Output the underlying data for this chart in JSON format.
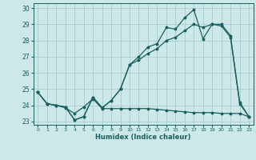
{
  "xlabel": "Humidex (Indice chaleur)",
  "ylabel": "",
  "background_color": "#cce8e8",
  "grid_color": "#aacccc",
  "line_color": "#1a6060",
  "xlim": [
    -0.5,
    23.5
  ],
  "ylim": [
    22.8,
    30.3
  ],
  "yticks": [
    23,
    24,
    25,
    26,
    27,
    28,
    29,
    30
  ],
  "xticks": [
    0,
    1,
    2,
    3,
    4,
    5,
    6,
    7,
    8,
    9,
    10,
    11,
    12,
    13,
    14,
    15,
    16,
    17,
    18,
    19,
    20,
    21,
    22,
    23
  ],
  "series1": [
    24.8,
    24.1,
    24.0,
    23.9,
    23.1,
    23.3,
    24.5,
    23.85,
    24.3,
    25.0,
    26.5,
    27.0,
    27.6,
    27.8,
    28.8,
    28.7,
    29.4,
    29.9,
    28.1,
    29.0,
    29.0,
    28.3,
    24.2,
    23.3
  ],
  "series2": [
    24.8,
    24.1,
    24.0,
    23.85,
    23.5,
    23.9,
    24.4,
    23.8,
    23.8,
    23.8,
    23.8,
    23.8,
    23.8,
    23.75,
    23.7,
    23.65,
    23.6,
    23.55,
    23.55,
    23.55,
    23.5,
    23.5,
    23.5,
    23.3
  ],
  "series3": [
    24.8,
    24.1,
    24.0,
    23.9,
    23.1,
    23.3,
    24.5,
    23.85,
    24.3,
    25.0,
    26.5,
    26.8,
    27.2,
    27.5,
    28.0,
    28.2,
    28.6,
    29.0,
    28.8,
    29.0,
    28.9,
    28.2,
    24.1,
    23.3
  ]
}
